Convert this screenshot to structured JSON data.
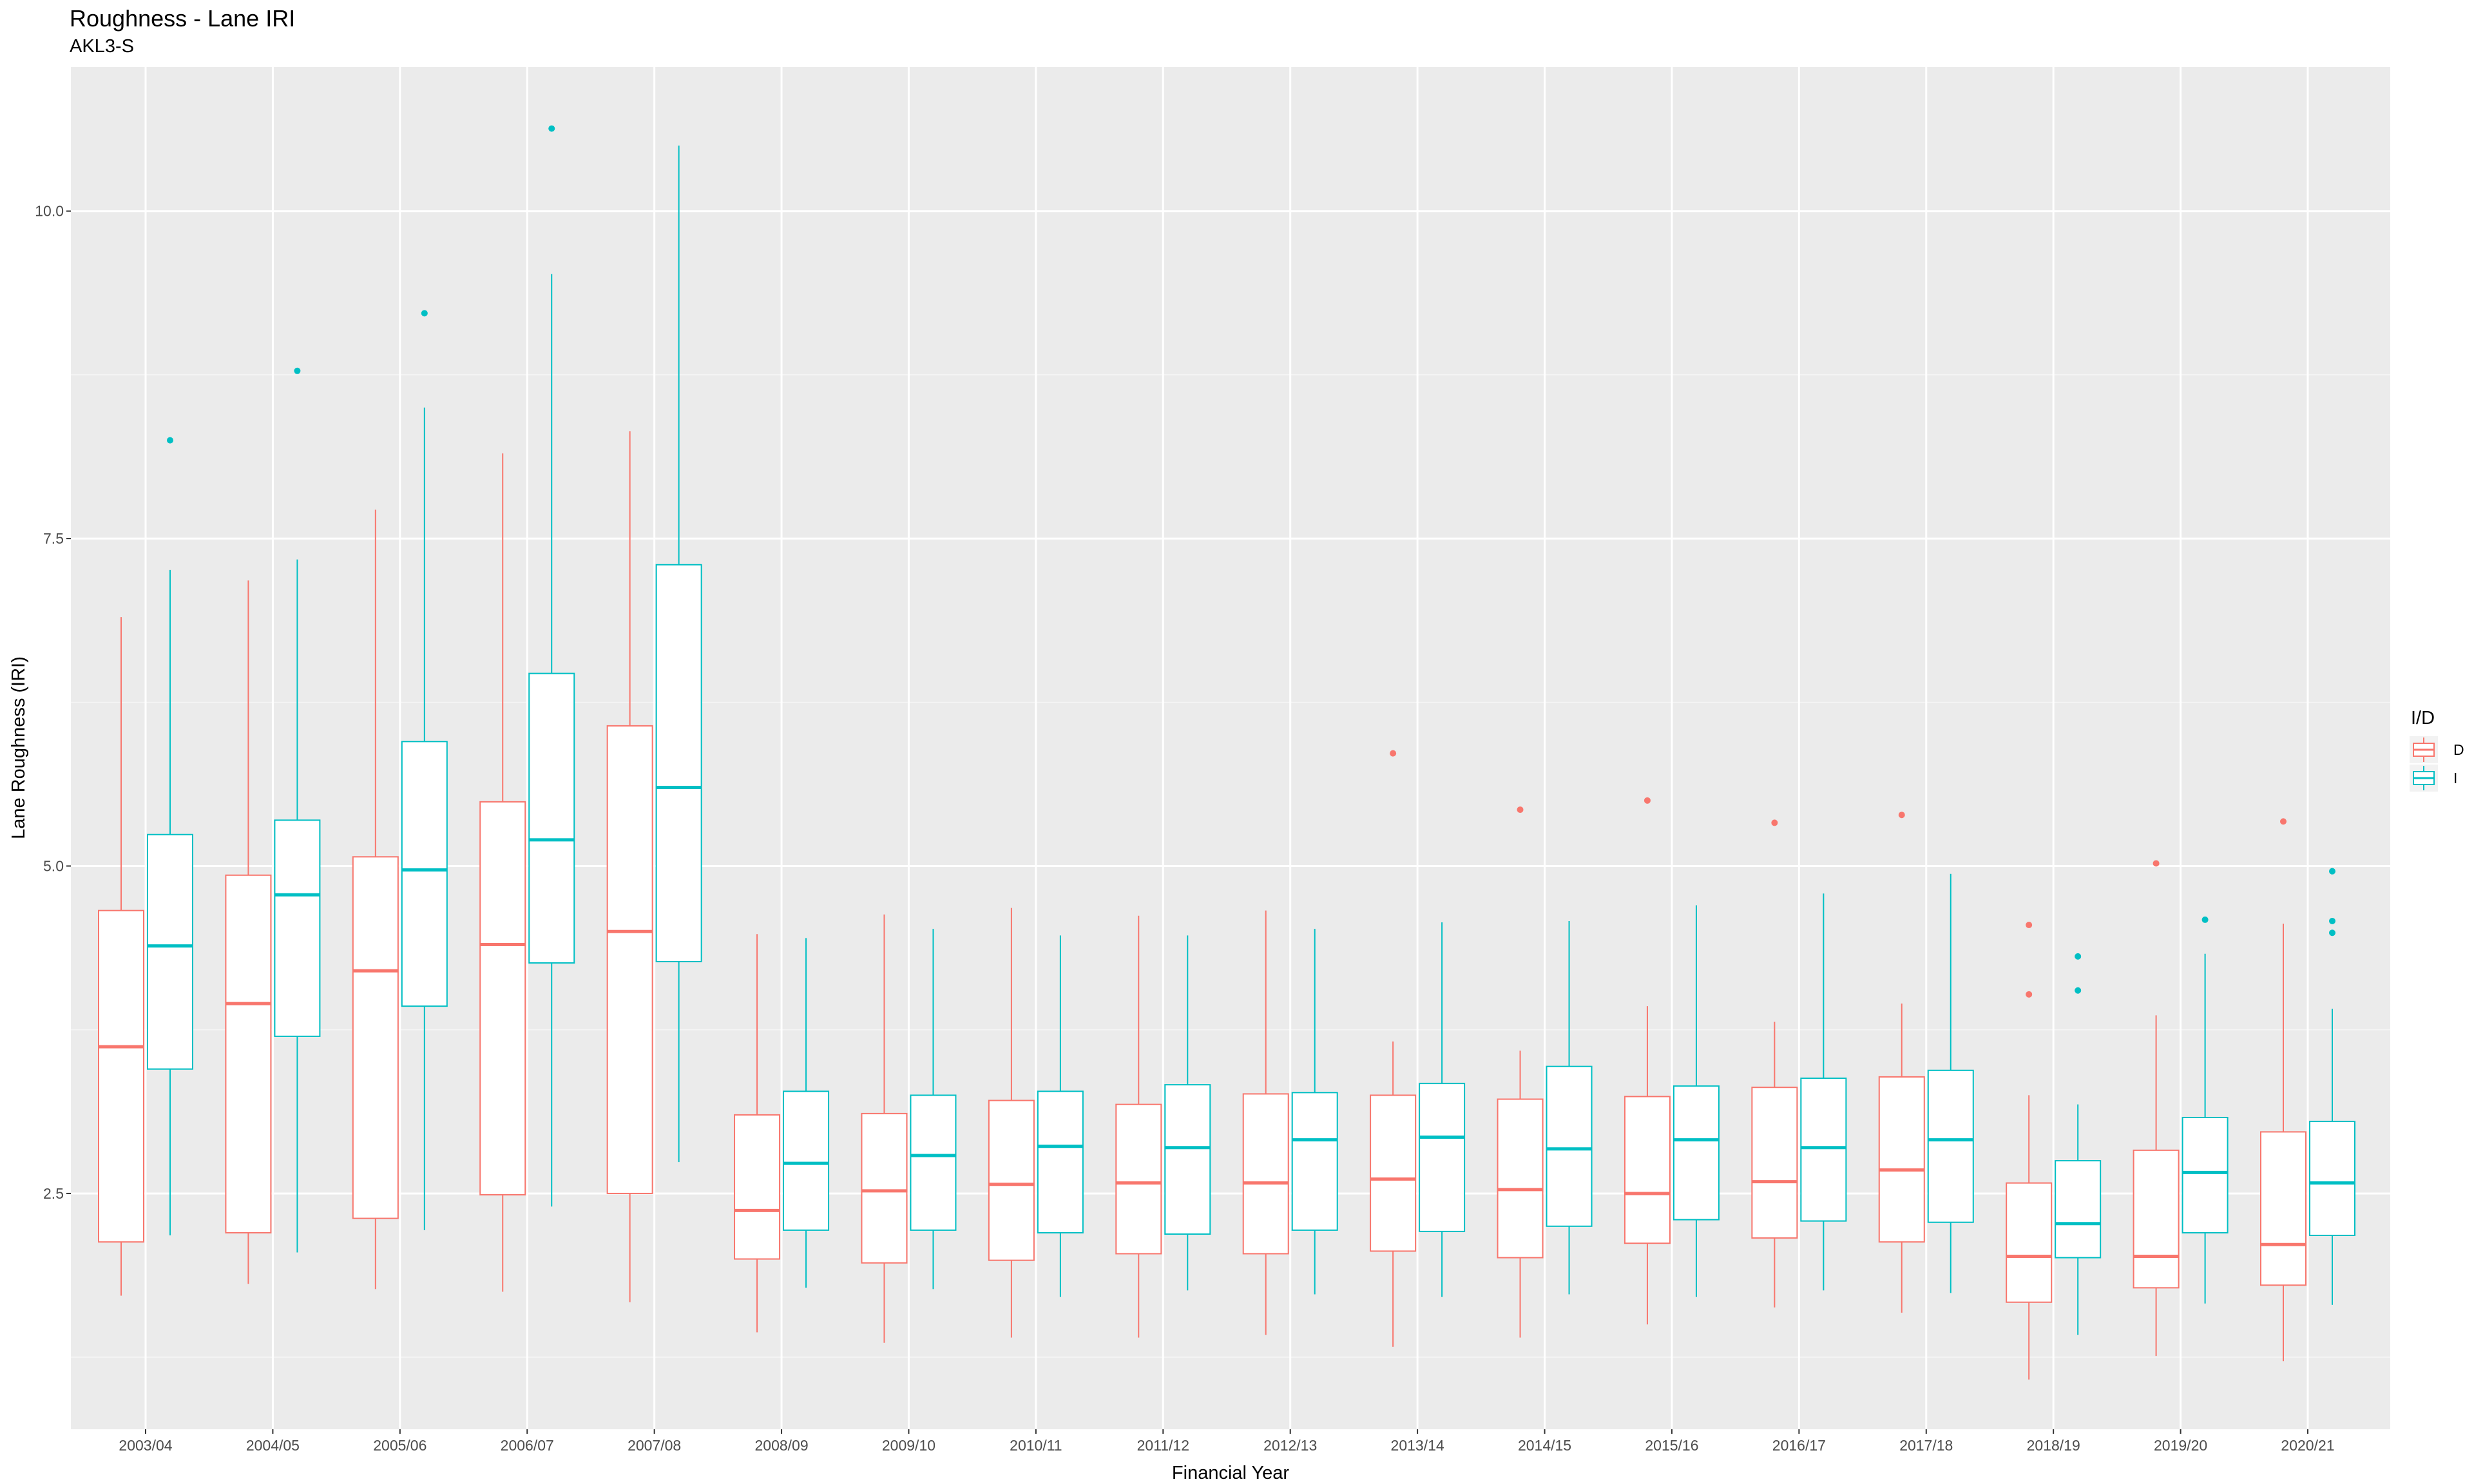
{
  "chart_data": {
    "type": "boxplot",
    "title": "Roughness - Lane IRI",
    "subtitle": "AKL3-S",
    "xlabel": "Financial Year",
    "ylabel": "Lane Roughness (IRI)",
    "ylim": [
      0.7,
      11.1
    ],
    "yticks": [
      2.5,
      5.0,
      7.5,
      10.0
    ],
    "ytick_labels": [
      "2.5",
      "5.0",
      "7.5",
      "10.0"
    ],
    "grid": true,
    "legend": {
      "title": "I/D",
      "position": "right",
      "entries": [
        "D",
        "I"
      ]
    },
    "categories": [
      "2003/04",
      "2004/05",
      "2005/06",
      "2006/07",
      "2007/08",
      "2008/09",
      "2009/10",
      "2010/11",
      "2011/12",
      "2012/13",
      "2013/14",
      "2014/15",
      "2015/16",
      "2016/17",
      "2017/18",
      "2018/19",
      "2019/20",
      "2020/21"
    ],
    "series": [
      {
        "name": "D",
        "color": "#F8766D",
        "boxes": [
          {
            "lower": 1.72,
            "q1": 2.13,
            "median": 3.62,
            "q3": 4.66,
            "upper": 6.9,
            "outliers": []
          },
          {
            "lower": 1.81,
            "q1": 2.2,
            "median": 3.95,
            "q3": 4.93,
            "upper": 7.18,
            "outliers": []
          },
          {
            "lower": 1.77,
            "q1": 2.31,
            "median": 4.2,
            "q3": 5.07,
            "upper": 7.72,
            "outliers": []
          },
          {
            "lower": 1.75,
            "q1": 2.49,
            "median": 4.4,
            "q3": 5.49,
            "upper": 8.15,
            "outliers": []
          },
          {
            "lower": 1.67,
            "q1": 2.5,
            "median": 4.5,
            "q3": 6.07,
            "upper": 8.32,
            "outliers": []
          },
          {
            "lower": 1.44,
            "q1": 2.0,
            "median": 2.37,
            "q3": 3.1,
            "upper": 4.48,
            "outliers": []
          },
          {
            "lower": 1.36,
            "q1": 1.97,
            "median": 2.52,
            "q3": 3.11,
            "upper": 4.63,
            "outliers": []
          },
          {
            "lower": 1.4,
            "q1": 1.99,
            "median": 2.57,
            "q3": 3.21,
            "upper": 4.68,
            "outliers": []
          },
          {
            "lower": 1.4,
            "q1": 2.04,
            "median": 2.58,
            "q3": 3.18,
            "upper": 4.62,
            "outliers": []
          },
          {
            "lower": 1.42,
            "q1": 2.04,
            "median": 2.58,
            "q3": 3.26,
            "upper": 4.66,
            "outliers": []
          },
          {
            "lower": 1.33,
            "q1": 2.06,
            "median": 2.61,
            "q3": 3.25,
            "upper": 3.66,
            "outliers": [
              5.86
            ]
          },
          {
            "lower": 1.4,
            "q1": 2.01,
            "median": 2.53,
            "q3": 3.22,
            "upper": 3.59,
            "outliers": [
              5.43
            ]
          },
          {
            "lower": 1.5,
            "q1": 2.12,
            "median": 2.5,
            "q3": 3.24,
            "upper": 3.93,
            "outliers": [
              5.5
            ]
          },
          {
            "lower": 1.63,
            "q1": 2.16,
            "median": 2.59,
            "q3": 3.31,
            "upper": 3.81,
            "outliers": [
              5.33
            ]
          },
          {
            "lower": 1.59,
            "q1": 2.13,
            "median": 2.68,
            "q3": 3.39,
            "upper": 3.95,
            "outliers": [
              5.39
            ]
          },
          {
            "lower": 1.08,
            "q1": 1.67,
            "median": 2.02,
            "q3": 2.58,
            "upper": 3.25,
            "outliers": [
              4.55,
              4.02
            ]
          },
          {
            "lower": 1.26,
            "q1": 1.78,
            "median": 2.02,
            "q3": 2.83,
            "upper": 3.86,
            "outliers": [
              5.02
            ]
          },
          {
            "lower": 1.22,
            "q1": 1.8,
            "median": 2.11,
            "q3": 2.97,
            "upper": 4.56,
            "outliers": [
              5.34
            ]
          }
        ]
      },
      {
        "name": "I",
        "color": "#00BFC4",
        "boxes": [
          {
            "lower": 2.18,
            "q1": 3.45,
            "median": 4.39,
            "q3": 5.24,
            "upper": 7.26,
            "outliers": [
              8.25
            ]
          },
          {
            "lower": 2.05,
            "q1": 3.7,
            "median": 4.78,
            "q3": 5.35,
            "upper": 7.34,
            "outliers": [
              8.78
            ]
          },
          {
            "lower": 2.22,
            "q1": 3.93,
            "median": 4.97,
            "q3": 5.95,
            "upper": 8.5,
            "outliers": [
              9.22
            ]
          },
          {
            "lower": 2.4,
            "q1": 4.26,
            "median": 5.2,
            "q3": 6.47,
            "upper": 9.52,
            "outliers": [
              10.63
            ]
          },
          {
            "lower": 2.74,
            "q1": 4.27,
            "median": 5.6,
            "q3": 7.3,
            "upper": 10.5,
            "outliers": []
          },
          {
            "lower": 1.78,
            "q1": 2.22,
            "median": 2.73,
            "q3": 3.28,
            "upper": 4.45,
            "outliers": []
          },
          {
            "lower": 1.77,
            "q1": 2.22,
            "median": 2.79,
            "q3": 3.25,
            "upper": 4.52,
            "outliers": []
          },
          {
            "lower": 1.71,
            "q1": 2.2,
            "median": 2.86,
            "q3": 3.28,
            "upper": 4.47,
            "outliers": []
          },
          {
            "lower": 1.76,
            "q1": 2.19,
            "median": 2.85,
            "q3": 3.33,
            "upper": 4.47,
            "outliers": []
          },
          {
            "lower": 1.73,
            "q1": 2.22,
            "median": 2.91,
            "q3": 3.27,
            "upper": 4.52,
            "outliers": []
          },
          {
            "lower": 1.71,
            "q1": 2.21,
            "median": 2.93,
            "q3": 3.34,
            "upper": 4.57,
            "outliers": []
          },
          {
            "lower": 1.73,
            "q1": 2.25,
            "median": 2.84,
            "q3": 3.47,
            "upper": 4.58,
            "outliers": []
          },
          {
            "lower": 1.71,
            "q1": 2.3,
            "median": 2.91,
            "q3": 3.32,
            "upper": 4.7,
            "outliers": []
          },
          {
            "lower": 1.76,
            "q1": 2.29,
            "median": 2.85,
            "q3": 3.38,
            "upper": 4.79,
            "outliers": []
          },
          {
            "lower": 1.74,
            "q1": 2.28,
            "median": 2.91,
            "q3": 3.44,
            "upper": 4.94,
            "outliers": []
          },
          {
            "lower": 1.42,
            "q1": 2.01,
            "median": 2.27,
            "q3": 2.75,
            "upper": 3.18,
            "outliers": [
              4.31,
              4.05
            ]
          },
          {
            "lower": 1.66,
            "q1": 2.2,
            "median": 2.66,
            "q3": 3.08,
            "upper": 4.33,
            "outliers": [
              4.59
            ]
          },
          {
            "lower": 1.65,
            "q1": 2.18,
            "median": 2.58,
            "q3": 3.05,
            "upper": 3.91,
            "outliers": [
              4.96,
              4.58,
              4.49
            ]
          }
        ]
      }
    ]
  }
}
